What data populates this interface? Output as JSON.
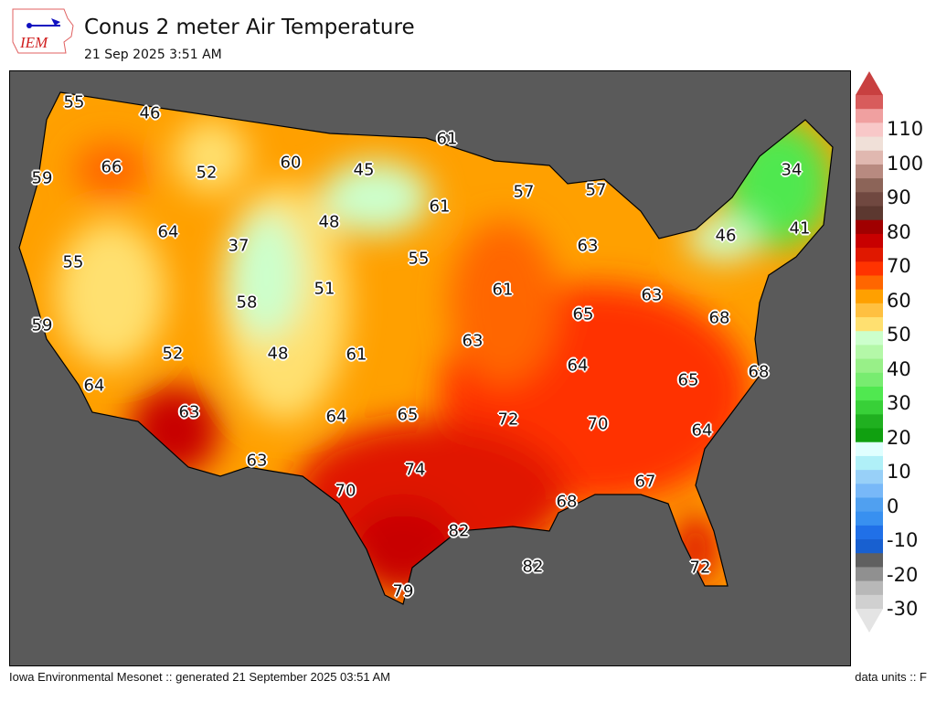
{
  "header": {
    "logo_text": "IEM",
    "title": "Conus 2 meter Air Temperature",
    "subtitle": "21 Sep 2025 3:51 AM"
  },
  "map": {
    "background_color": "#5a5a5a",
    "labels": [
      "55",
      "46",
      "66",
      "59",
      "52",
      "60",
      "45",
      "61",
      "57",
      "57",
      "34",
      "48",
      "61",
      "64",
      "37",
      "46",
      "41",
      "55",
      "55",
      "63",
      "51",
      "61",
      "58",
      "63",
      "65",
      "59",
      "68",
      "52",
      "48",
      "61",
      "63",
      "64",
      "65",
      "68",
      "64",
      "63",
      "64",
      "65",
      "72",
      "70",
      "64",
      "74",
      "63",
      "67",
      "70",
      "68",
      "82",
      "82",
      "72",
      "79"
    ]
  },
  "colorbar": {
    "units": "F",
    "ticks": [
      "110",
      "100",
      "90",
      "80",
      "70",
      "60",
      "50",
      "40",
      "30",
      "20",
      "10",
      "0",
      "-10",
      "-20",
      "-30"
    ],
    "range": [
      -30,
      120
    ],
    "colors": [
      "#d85c5c",
      "#f0a0a0",
      "#f8c8c8",
      "#f0e0d8",
      "#e0b8b0",
      "#b88a80",
      "#8c6458",
      "#704840",
      "#5c3830",
      "#a00000",
      "#c80000",
      "#e01800",
      "#ff3300",
      "#ff6600",
      "#ffa000",
      "#ffc040",
      "#ffe070",
      "#ccffcc",
      "#b4f8a8",
      "#98f088",
      "#78ec70",
      "#50e850",
      "#38d038",
      "#20b020",
      "#10a010",
      "#e0ffff",
      "#b0f0f8",
      "#98d0f8",
      "#78b8f8",
      "#50a0f0",
      "#3890f0",
      "#2070e8",
      "#1860d0",
      "#606060",
      "#909090",
      "#b8b8b8",
      "#d0d0d0"
    ],
    "top_arrow_color": "#c84040",
    "bottom_arrow_color": "#e4e4e4"
  },
  "footer": {
    "left": "Iowa Environmental Mesonet :: generated 21 September 2025 03:51 AM",
    "right": "data units :: F"
  }
}
